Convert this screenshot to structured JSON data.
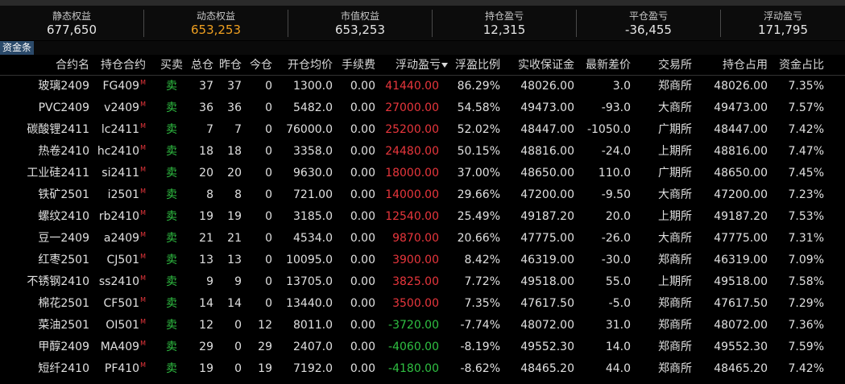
{
  "summary": [
    {
      "label": "静态权益",
      "value": "677,650"
    },
    {
      "label": "动态权益",
      "value": "653,253"
    },
    {
      "label": "市值权益",
      "value": "653,253"
    },
    {
      "label": "持仓盈亏",
      "value": "12,315"
    },
    {
      "label": "平仓盈亏",
      "value": "-36,455"
    },
    {
      "label": "浮动盈亏",
      "value": "171,795"
    }
  ],
  "funds_tab": "资金条",
  "columns": [
    "合约名",
    "持仓合约",
    "买卖",
    "总仓",
    "昨仓",
    "今仓",
    "开仓均价",
    "手续费",
    "浮动盈亏",
    "浮盈比例",
    "实收保证金",
    "最新差价",
    "交易所",
    "持仓占用",
    "资金占比"
  ],
  "colors": {
    "profit": "#e8363c",
    "loss": "#2fc042",
    "highlight": "#f0a020",
    "background": "#000000"
  },
  "rows": [
    {
      "name": "玻璃2409",
      "contract": "FG409",
      "tag": "M",
      "side": "卖",
      "total": "37",
      "yesterday": "37",
      "today": "0",
      "avg_price": "1300.0",
      "fee": "0.00",
      "float_pl": "41440.00",
      "pl_dir": "up",
      "pl_ratio": "86.29%",
      "margin": "48026.00",
      "diff": "3.0",
      "exchange": "郑商所",
      "occupy": "48026.00",
      "fund_ratio": "7.35%"
    },
    {
      "name": "PVC2409",
      "contract": "v2409",
      "tag": "M",
      "side": "卖",
      "total": "36",
      "yesterday": "36",
      "today": "0",
      "avg_price": "5482.0",
      "fee": "0.00",
      "float_pl": "27000.00",
      "pl_dir": "up",
      "pl_ratio": "54.58%",
      "margin": "49473.00",
      "diff": "-93.0",
      "exchange": "大商所",
      "occupy": "49473.00",
      "fund_ratio": "7.57%"
    },
    {
      "name": "碳酸锂2411",
      "contract": "lc2411",
      "tag": "M",
      "side": "卖",
      "total": "7",
      "yesterday": "7",
      "today": "0",
      "avg_price": "76000.0",
      "fee": "0.00",
      "float_pl": "25200.00",
      "pl_dir": "up",
      "pl_ratio": "52.02%",
      "margin": "48447.00",
      "diff": "-1050.0",
      "exchange": "广期所",
      "occupy": "48447.00",
      "fund_ratio": "7.42%"
    },
    {
      "name": "热卷2410",
      "contract": "hc2410",
      "tag": "M",
      "side": "卖",
      "total": "18",
      "yesterday": "18",
      "today": "0",
      "avg_price": "3358.0",
      "fee": "0.00",
      "float_pl": "24480.00",
      "pl_dir": "up",
      "pl_ratio": "50.15%",
      "margin": "48816.00",
      "diff": "-24.0",
      "exchange": "上期所",
      "occupy": "48816.00",
      "fund_ratio": "7.47%"
    },
    {
      "name": "工业硅2411",
      "contract": "si2411",
      "tag": "M",
      "side": "卖",
      "total": "20",
      "yesterday": "20",
      "today": "0",
      "avg_price": "9630.0",
      "fee": "0.00",
      "float_pl": "18000.00",
      "pl_dir": "up",
      "pl_ratio": "37.00%",
      "margin": "48650.00",
      "diff": "110.0",
      "exchange": "广期所",
      "occupy": "48650.00",
      "fund_ratio": "7.45%"
    },
    {
      "name": "铁矿2501",
      "contract": "i2501",
      "tag": "M",
      "side": "卖",
      "total": "8",
      "yesterday": "8",
      "today": "0",
      "avg_price": "721.00",
      "fee": "0.00",
      "float_pl": "14000.00",
      "pl_dir": "up",
      "pl_ratio": "29.66%",
      "margin": "47200.00",
      "diff": "-9.50",
      "exchange": "大商所",
      "occupy": "47200.00",
      "fund_ratio": "7.23%"
    },
    {
      "name": "螺纹2410",
      "contract": "rb2410",
      "tag": "M",
      "side": "卖",
      "total": "19",
      "yesterday": "19",
      "today": "0",
      "avg_price": "3185.0",
      "fee": "0.00",
      "float_pl": "12540.00",
      "pl_dir": "up",
      "pl_ratio": "25.49%",
      "margin": "49187.20",
      "diff": "20.0",
      "exchange": "上期所",
      "occupy": "49187.20",
      "fund_ratio": "7.53%"
    },
    {
      "name": "豆一2409",
      "contract": "a2409",
      "tag": "M",
      "side": "卖",
      "total": "21",
      "yesterday": "21",
      "today": "0",
      "avg_price": "4534.0",
      "fee": "0.00",
      "float_pl": "9870.00",
      "pl_dir": "up",
      "pl_ratio": "20.66%",
      "margin": "47775.00",
      "diff": "-26.0",
      "exchange": "大商所",
      "occupy": "47775.00",
      "fund_ratio": "7.31%"
    },
    {
      "name": "红枣2501",
      "contract": "CJ501",
      "tag": "M",
      "side": "卖",
      "total": "13",
      "yesterday": "13",
      "today": "0",
      "avg_price": "10095.0",
      "fee": "0.00",
      "float_pl": "3900.00",
      "pl_dir": "up",
      "pl_ratio": "8.42%",
      "margin": "46319.00",
      "diff": "-30.0",
      "exchange": "郑商所",
      "occupy": "46319.00",
      "fund_ratio": "7.09%"
    },
    {
      "name": "不锈钢2410",
      "contract": "ss2410",
      "tag": "M",
      "side": "卖",
      "total": "9",
      "yesterday": "9",
      "today": "0",
      "avg_price": "13705.0",
      "fee": "0.00",
      "float_pl": "3825.00",
      "pl_dir": "up",
      "pl_ratio": "7.72%",
      "margin": "49518.00",
      "diff": "55.0",
      "exchange": "上期所",
      "occupy": "49518.00",
      "fund_ratio": "7.58%"
    },
    {
      "name": "棉花2501",
      "contract": "CF501",
      "tag": "M",
      "side": "卖",
      "total": "14",
      "yesterday": "14",
      "today": "0",
      "avg_price": "13440.0",
      "fee": "0.00",
      "float_pl": "3500.00",
      "pl_dir": "up",
      "pl_ratio": "7.35%",
      "margin": "47617.50",
      "diff": "-5.0",
      "exchange": "郑商所",
      "occupy": "47617.50",
      "fund_ratio": "7.29%"
    },
    {
      "name": "菜油2501",
      "contract": "OI501",
      "tag": "M",
      "side": "卖",
      "total": "12",
      "yesterday": "0",
      "today": "12",
      "avg_price": "8011.0",
      "fee": "0.00",
      "float_pl": "-3720.00",
      "pl_dir": "down",
      "pl_ratio": "-7.74%",
      "margin": "48072.00",
      "diff": "31.0",
      "exchange": "郑商所",
      "occupy": "48072.00",
      "fund_ratio": "7.36%"
    },
    {
      "name": "甲醇2409",
      "contract": "MA409",
      "tag": "M",
      "side": "卖",
      "total": "29",
      "yesterday": "0",
      "today": "29",
      "avg_price": "2407.0",
      "fee": "0.00",
      "float_pl": "-4060.00",
      "pl_dir": "down",
      "pl_ratio": "-8.19%",
      "margin": "49552.30",
      "diff": "14.0",
      "exchange": "郑商所",
      "occupy": "49552.30",
      "fund_ratio": "7.59%"
    },
    {
      "name": "短纤2410",
      "contract": "PF410",
      "tag": "M",
      "side": "卖",
      "total": "19",
      "yesterday": "0",
      "today": "19",
      "avg_price": "7192.0",
      "fee": "0.00",
      "float_pl": "-4180.00",
      "pl_dir": "down",
      "pl_ratio": "-8.62%",
      "margin": "48465.20",
      "diff": "44.0",
      "exchange": "郑商所",
      "occupy": "48465.20",
      "fund_ratio": "7.42%"
    }
  ]
}
